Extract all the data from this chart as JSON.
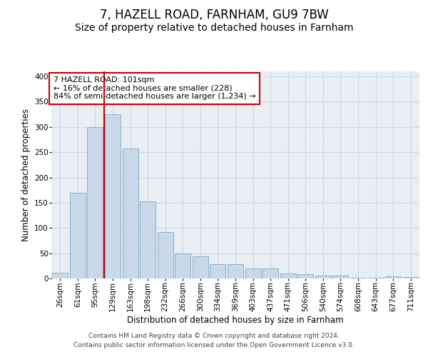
{
  "title1": "7, HAZELL ROAD, FARNHAM, GU9 7BW",
  "title2": "Size of property relative to detached houses in Farnham",
  "xlabel": "Distribution of detached houses by size in Farnham",
  "ylabel": "Number of detached properties",
  "footer1": "Contains HM Land Registry data © Crown copyright and database right 2024.",
  "footer2": "Contains public sector information licensed under the Open Government Licence v3.0.",
  "annotation_line1": "7 HAZELL ROAD: 101sqm",
  "annotation_line2": "← 16% of detached houses are smaller (228)",
  "annotation_line3": "84% of semi-detached houses are larger (1,234) →",
  "bar_color": "#c8d8e8",
  "bar_edge_color": "#7aaac8",
  "vline_color": "#cc0000",
  "annotation_box_color": "#cc0000",
  "grid_color": "#d0d8e0",
  "bg_color": "#e8eef4",
  "categories": [
    "26sqm",
    "61sqm",
    "95sqm",
    "129sqm",
    "163sqm",
    "198sqm",
    "232sqm",
    "266sqm",
    "300sqm",
    "334sqm",
    "369sqm",
    "403sqm",
    "437sqm",
    "471sqm",
    "506sqm",
    "540sqm",
    "574sqm",
    "608sqm",
    "643sqm",
    "677sqm",
    "711sqm"
  ],
  "values": [
    12,
    170,
    300,
    325,
    258,
    153,
    92,
    50,
    44,
    28,
    28,
    20,
    20,
    10,
    9,
    5,
    5,
    2,
    2,
    4,
    3
  ],
  "vline_x": 2.5,
  "ylim": [
    0,
    410
  ],
  "yticks": [
    0,
    50,
    100,
    150,
    200,
    250,
    300,
    350,
    400
  ],
  "title1_fontsize": 12,
  "title2_fontsize": 10,
  "axis_label_fontsize": 8.5,
  "tick_fontsize": 7.5,
  "annotation_fontsize": 8,
  "footer_fontsize": 6.5
}
